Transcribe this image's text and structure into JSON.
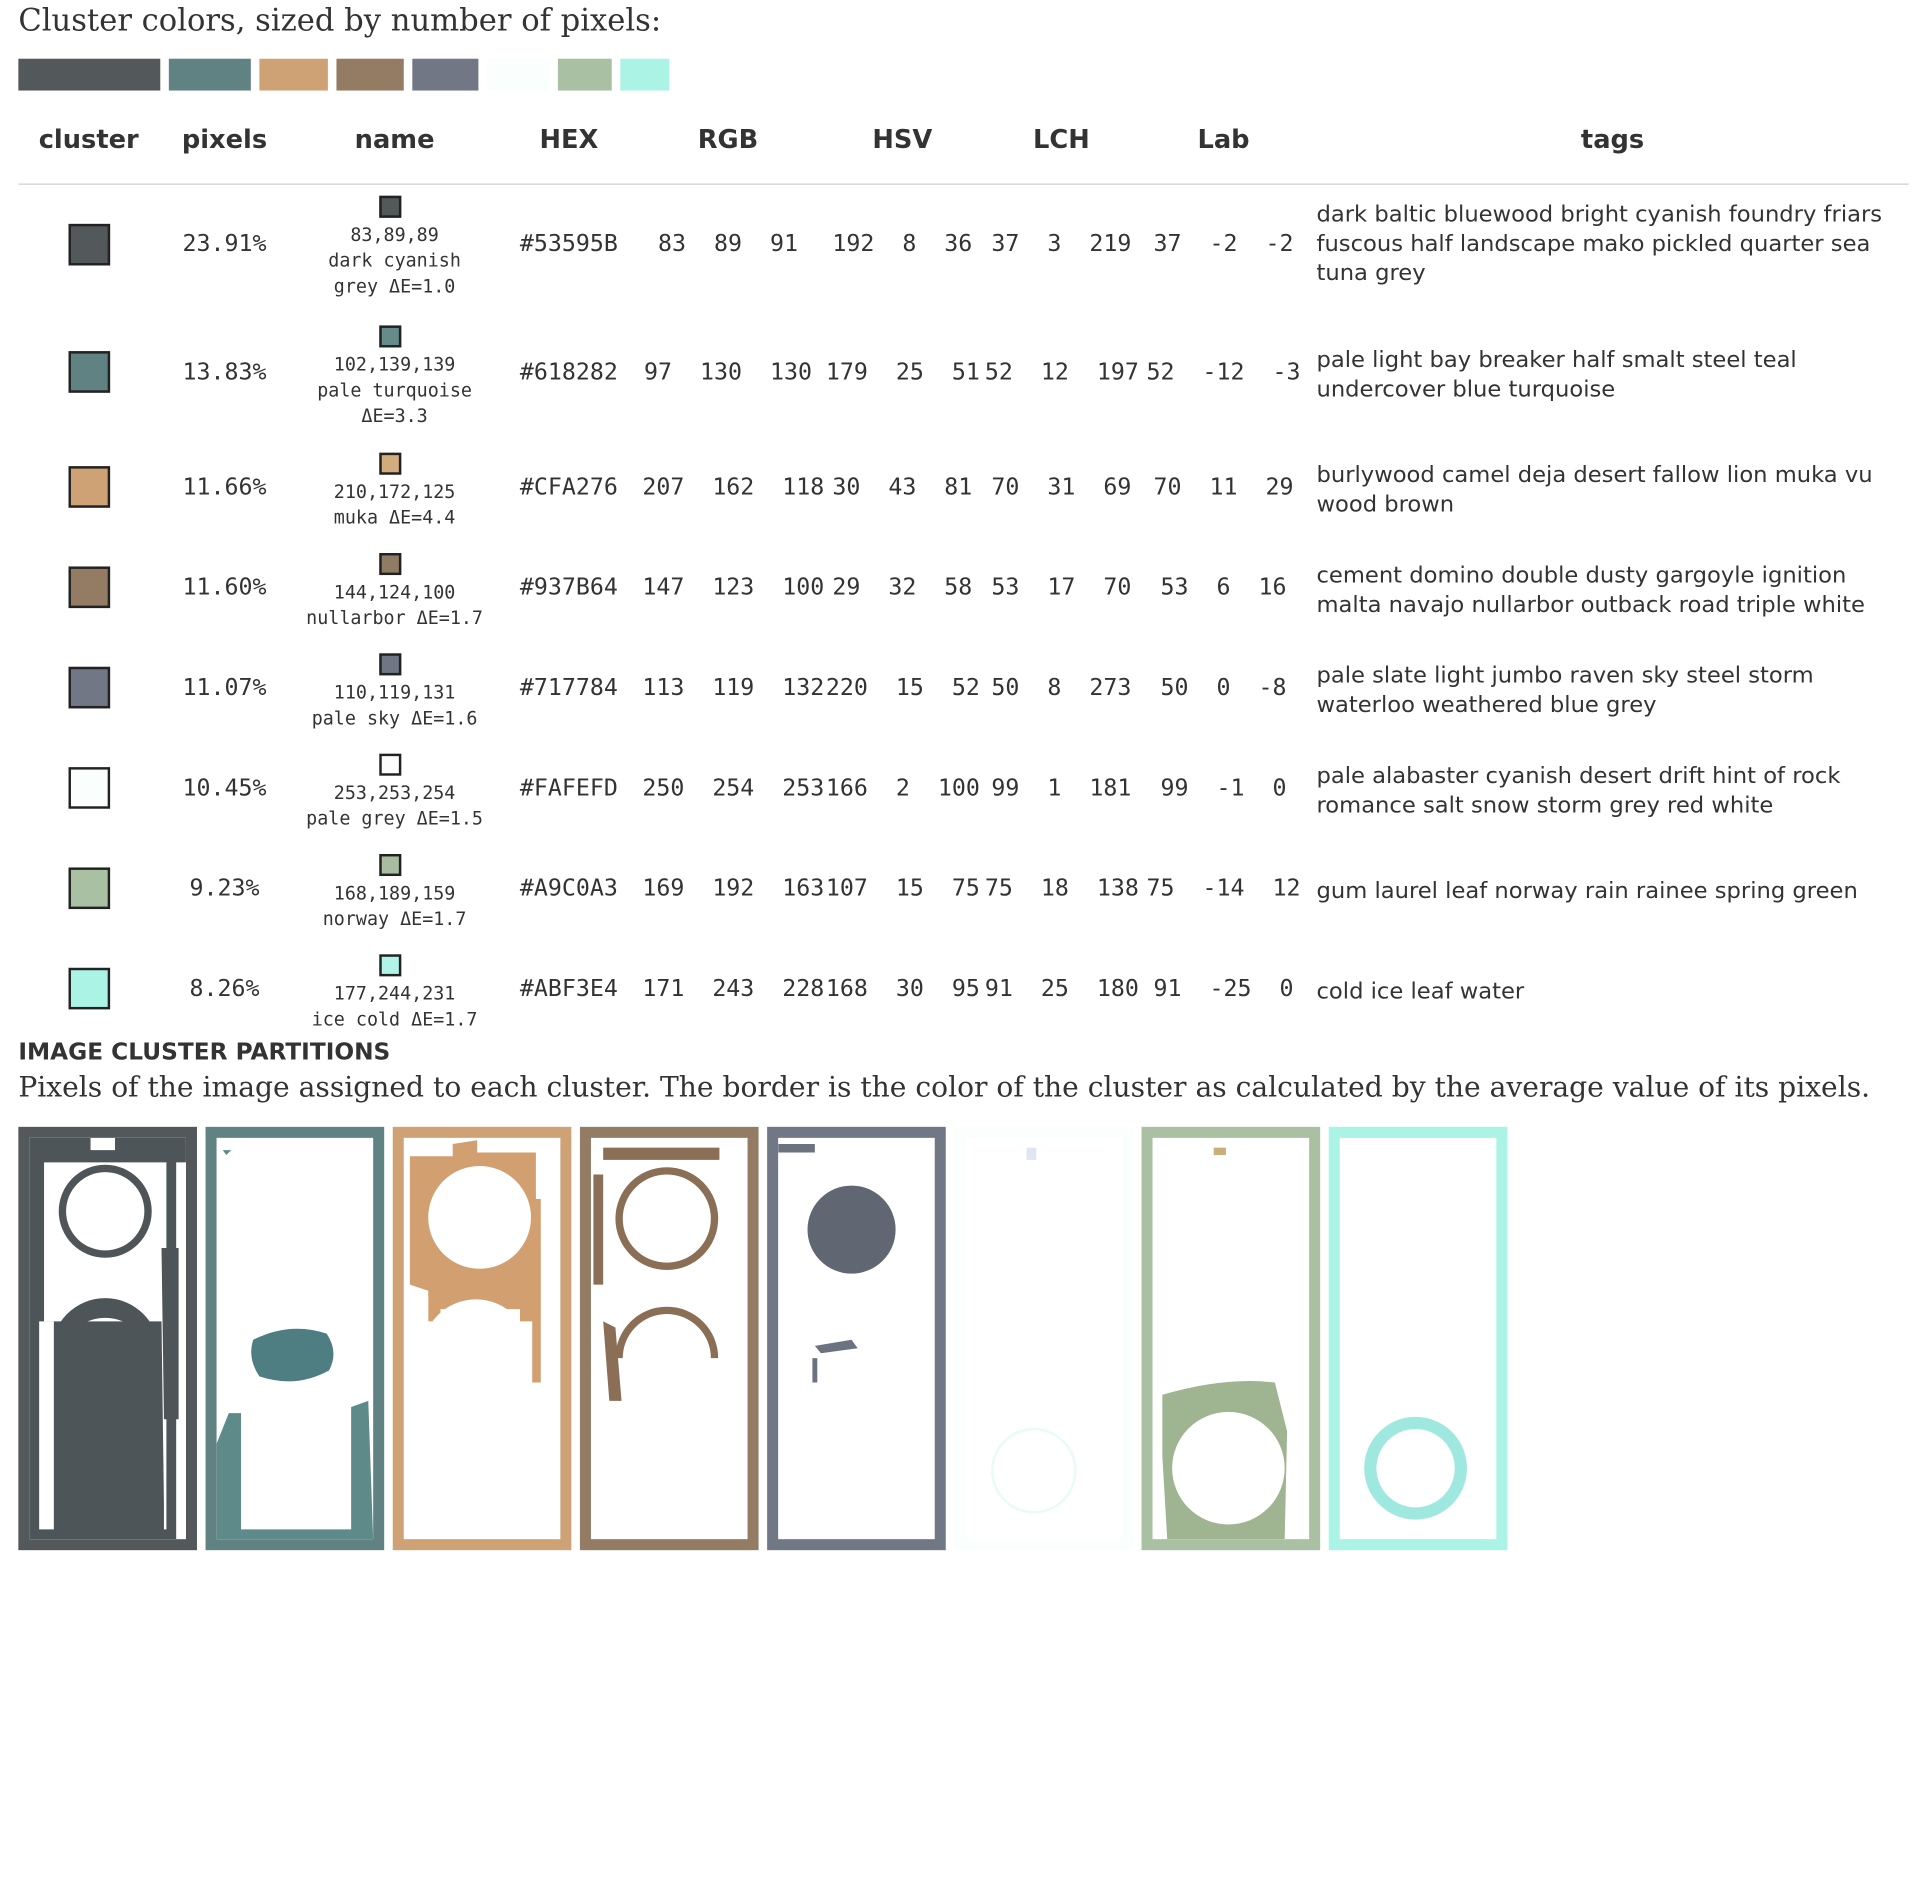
{
  "intro": "Cluster colors, sized by number of pixels:",
  "headers": [
    "cluster",
    "pixels",
    "name",
    "HEX",
    "RGB",
    "HSV",
    "LCH",
    "Lab",
    "tags"
  ],
  "clusters": [
    {
      "color": "#53595B",
      "pixels": "23.91%",
      "rgb_name": "83,89,89",
      "name_line1": "dark cyanish",
      "name_line2": "grey ΔE=1.0",
      "hex": "#53595B",
      "rgb": "83  89  91",
      "hsv": "192  8  36",
      "lch": "37  3  219",
      "lab": "37  -2  -2",
      "tags": "dark baltic bluewood bright cyanish foundry friars fuscous half landscape mako pickled quarter sea tuna grey",
      "bar_width": 116
    },
    {
      "color": "#618282",
      "pixels": "13.83%",
      "rgb_name": "102,139,139",
      "name_line1": "pale turquoise",
      "name_line2": "ΔE=3.3",
      "hex": "#618282",
      "rgb": "97  130  130",
      "hsv": "179  25  51",
      "lch": "52  12  197",
      "lab": "52  -12  -3",
      "tags": "pale light bay breaker half smalt steel teal undercover blue turquoise",
      "bar_width": 67
    },
    {
      "color": "#CFA276",
      "pixels": "11.66%",
      "rgb_name": "210,172,125",
      "name_line1": "muka ΔE=4.4",
      "name_line2": "",
      "hex": "#CFA276",
      "rgb": "207  162  118",
      "hsv": "30  43  81",
      "lch": "70  31  69",
      "lab": "70  11  29",
      "tags": "burlywood camel deja desert fallow lion muka vu wood brown",
      "bar_width": 56
    },
    {
      "color": "#937B64",
      "pixels": "11.60%",
      "rgb_name": "144,124,100",
      "name_line1": "nullarbor ΔE=1.7",
      "name_line2": "",
      "hex": "#937B64",
      "rgb": "147  123  100",
      "hsv": "29  32  58",
      "lch": "53  17  70",
      "lab": "53  6  16",
      "tags": "cement domino double dusty gargoyle ignition malta navajo nullarbor outback road triple white",
      "bar_width": 55
    },
    {
      "color": "#717784",
      "pixels": "11.07%",
      "rgb_name": "110,119,131",
      "name_line1": "pale sky ΔE=1.6",
      "name_line2": "",
      "hex": "#717784",
      "rgb": "113  119  132",
      "hsv": "220  15  52",
      "lch": "50  8  273",
      "lab": "50  0  -8",
      "tags": "pale slate light jumbo raven sky steel storm waterloo weathered blue grey",
      "bar_width": 54
    },
    {
      "color": "#FAFEFD",
      "pixels": "10.45%",
      "rgb_name": "253,253,254",
      "name_line1": "pale grey ΔE=1.5",
      "name_line2": "",
      "hex": "#FAFEFD",
      "rgb": "250  254  253",
      "hsv": "166  2  100",
      "lch": "99  1  181",
      "lab": "99  -1  0",
      "tags": "pale alabaster cyanish desert drift hint of rock romance salt snow storm grey red white",
      "bar_width": 51
    },
    {
      "color": "#A9C0A3",
      "pixels": "9.23%",
      "rgb_name": "168,189,159",
      "name_line1": "norway ΔE=1.7",
      "name_line2": "",
      "hex": "#A9C0A3",
      "rgb": "169  192  163",
      "hsv": "107  15  75",
      "lch": "75  18  138",
      "lab": "75  -14  12",
      "tags": "gum laurel leaf norway rain rainee spring green",
      "bar_width": 44
    },
    {
      "color": "#ABF3E4",
      "pixels": "8.26%",
      "rgb_name": "177,244,231",
      "name_line1": "ice cold ΔE=1.7",
      "name_line2": "",
      "hex": "#ABF3E4",
      "rgb": "171  243  228",
      "hsv": "168  30  95",
      "lch": "91  25  180",
      "lab": "91  -25  0",
      "tags": "cold ice leaf water",
      "bar_width": 40
    }
  ],
  "section_title": "IMAGE CLUSTER PARTITIONS",
  "section_desc": "Pixels of the image assigned to each cluster. The border is the color of the cluster as calculated by the average value of its pixels."
}
